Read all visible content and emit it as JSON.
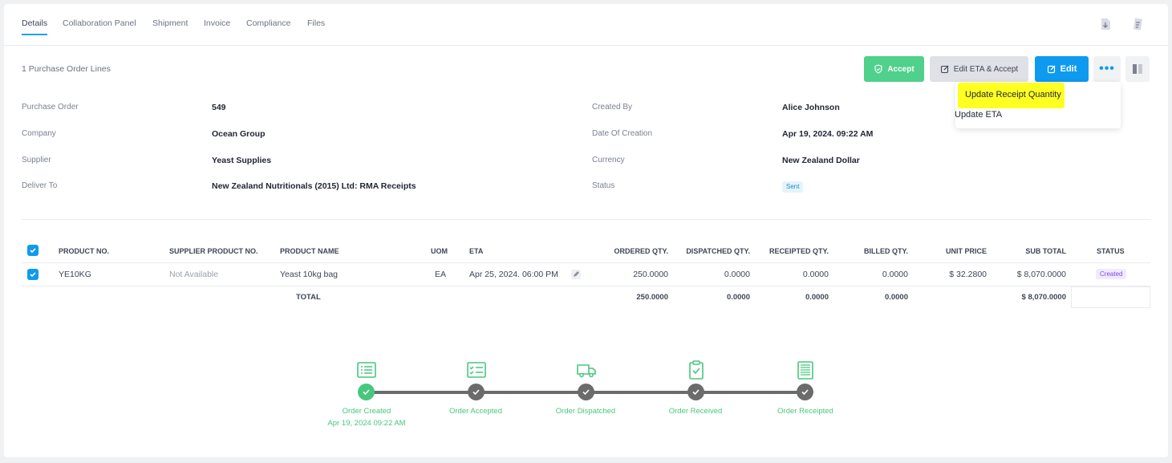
{
  "tabs": [
    "Details",
    "Collaboration Panel",
    "Shipment",
    "Invoice",
    "Compliance",
    "Files"
  ],
  "header": {
    "po_lines": "1 Purchase Order Lines",
    "accept_label": "Accept",
    "edit_eta_accept_label": "Edit ETA & Accept",
    "edit_label": "Edit",
    "more_label": "•••"
  },
  "dropdown": {
    "items": [
      "Update Receipt Quantity",
      "Update ETA"
    ]
  },
  "details": {
    "left": [
      {
        "label": "Purchase Order",
        "value": "549"
      },
      {
        "label": "Company",
        "value": "Ocean Group"
      },
      {
        "label": "Supplier",
        "value": "Yeast Supplies"
      },
      {
        "label": "Deliver To",
        "value": "New Zealand Nutritionals (2015) Ltd: RMA Receipts"
      }
    ],
    "right": [
      {
        "label": "Created By",
        "value": "Alice Johnson"
      },
      {
        "label": "Date Of Creation",
        "value": "Apr 19, 2024. 09:22 AM"
      },
      {
        "label": "Currency",
        "value": "New Zealand Dollar"
      },
      {
        "label": "Status",
        "value": "Sent"
      }
    ]
  },
  "table": {
    "columns": [
      "PRODUCT NO.",
      "SUPPLIER PRODUCT NO.",
      "PRODUCT NAME",
      "UOM",
      "ETA",
      "ORDERED QTY.",
      "DISPATCHED QTY.",
      "RECEIPTED QTY.",
      "BILLED QTY.",
      "UNIT PRICE",
      "SUB TOTAL",
      "STATUS"
    ],
    "row": {
      "product_no": "YE10KG",
      "supplier_product_no": "Not Available",
      "product_name": "Yeast 10kg bag",
      "uom": "EA",
      "eta": "Apr 25, 2024. 06:00 PM",
      "ordered_qty": "250.0000",
      "dispatched_qty": "0.0000",
      "receipted_qty": "0.0000",
      "billed_qty": "0.0000",
      "unit_price": "$ 32.2800",
      "sub_total": "$ 8,070.0000",
      "status": "Created"
    },
    "total": {
      "label": "TOTAL",
      "ordered_qty": "250.0000",
      "dispatched_qty": "0.0000",
      "receipted_qty": "0.0000",
      "billed_qty": "0.0000",
      "sub_total": "$ 8,070.0000"
    }
  },
  "timeline": {
    "steps": [
      "Order Created",
      "Order Accepted",
      "Order Dispatched",
      "Order Received",
      "Order Receipted"
    ],
    "created_date": "Apr 19, 2024 09:22 AM",
    "colors": {
      "done": "#47c77e",
      "pending": "#6b6b6b"
    }
  }
}
